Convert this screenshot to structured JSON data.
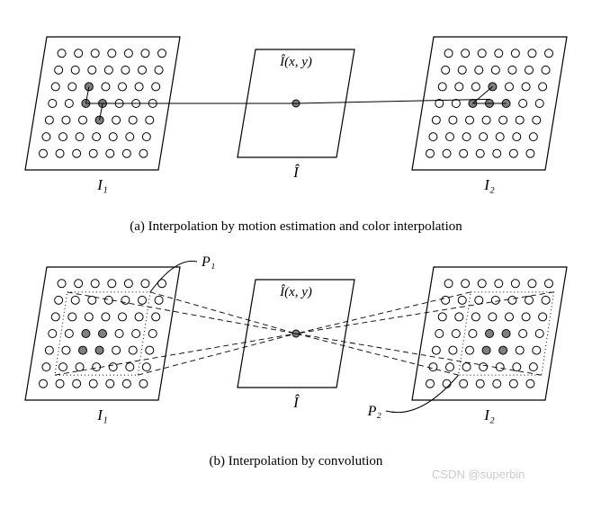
{
  "figure": {
    "panels": [
      {
        "id": "a",
        "caption": "(a)  Interpolation by motion estimation and color interpolation",
        "center_label": "Î(x, y)",
        "center_bottom_label": "Î",
        "grids": [
          {
            "label": "I₁",
            "rows": 7,
            "cols": 7,
            "filled": [
              [
                2,
                2
              ],
              [
                3,
                2
              ],
              [
                3,
                3
              ],
              [
                4,
                3
              ]
            ],
            "has_patch": false,
            "lines_to_filled": true
          },
          {
            "label": "I₂",
            "rows": 7,
            "cols": 7,
            "filled": [
              [
                2,
                3
              ],
              [
                3,
                2
              ],
              [
                3,
                3
              ],
              [
                3,
                4
              ]
            ],
            "has_patch": false,
            "lines_to_filled": true
          }
        ]
      },
      {
        "id": "b",
        "caption": "(b)  Interpolation by convolution",
        "center_label": "Î(x, y)",
        "center_bottom_label": "Î",
        "p1_label": "P₁",
        "p2_label": "P₂",
        "grids": [
          {
            "label": "I₁",
            "rows": 7,
            "cols": 7,
            "filled": [
              [
                3,
                2
              ],
              [
                3,
                3
              ],
              [
                4,
                2
              ],
              [
                4,
                3
              ]
            ],
            "has_patch": true,
            "patch_rows": [
              1,
              5
            ],
            "patch_cols": [
              1,
              5
            ]
          },
          {
            "label": "I₂",
            "rows": 7,
            "cols": 7,
            "filled": [
              [
                3,
                3
              ],
              [
                3,
                4
              ],
              [
                4,
                3
              ],
              [
                4,
                4
              ]
            ],
            "has_patch": true,
            "patch_rows": [
              1,
              5
            ],
            "patch_cols": [
              2,
              6
            ]
          }
        ]
      }
    ],
    "style": {
      "circle_r": 4.5,
      "circle_stroke": "#000000",
      "circle_fill_open": "#ffffff",
      "circle_fill_solid": "#808080",
      "line_color": "#000000",
      "dash": "6,4",
      "dotted": "1,3",
      "panel_stroke": "#000000",
      "text_color": "#000000",
      "font_family": "Times New Roman, serif",
      "label_fontsize": 16,
      "caption_fontsize": 15,
      "watermark_color": "#cccccc"
    },
    "watermark": "CSDN @superbin"
  }
}
